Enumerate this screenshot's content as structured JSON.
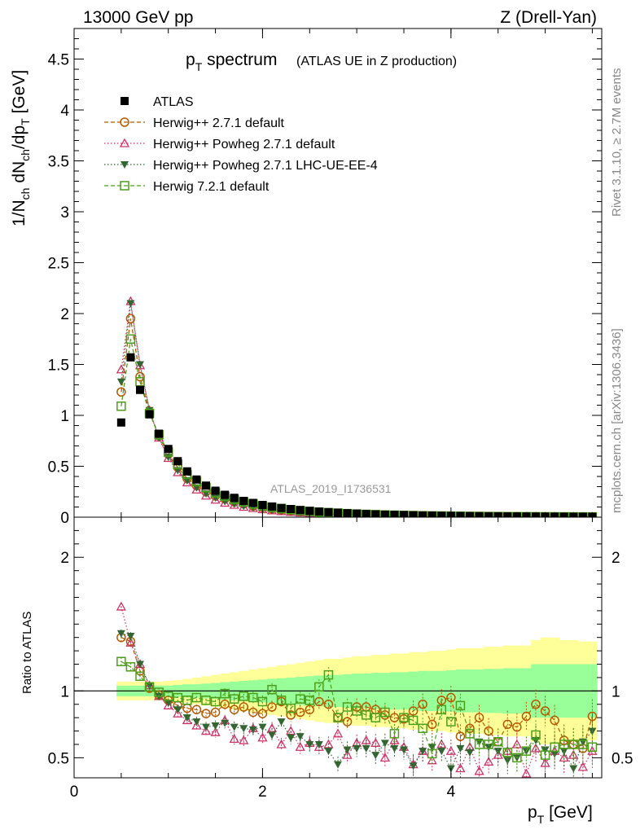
{
  "header": {
    "left": "13000 GeV pp",
    "right": "Z (Drell-Yan)"
  },
  "side_labels": {
    "rivet": "Rivet 3.1.10, ≥ 2.7M events",
    "mcplots": "mcplots.cern.ch [arXiv:1306.3436]"
  },
  "chart_data": [
    {
      "type": "scatter",
      "title_main": "p",
      "title_sub": "T",
      "title_rest": " spectrum",
      "title_paren": "(ATLAS UE in Z production)",
      "watermark": "ATLAS_2019_I1736531",
      "ylabel": "1/N_ch dN_ch/dp_T [GeV]",
      "xlim": [
        0,
        5.6
      ],
      "ylim": [
        0,
        4.8
      ],
      "yticks": [
        "0",
        "0.5",
        "1",
        "1.5",
        "2",
        "2.5",
        "3",
        "3.5",
        "4",
        "4.5"
      ],
      "x": [
        0.5,
        0.6,
        0.7,
        0.8,
        0.9,
        1.0,
        1.1,
        1.2,
        1.3,
        1.4,
        1.5,
        1.6,
        1.7,
        1.8,
        1.9,
        2.0,
        2.1,
        2.2,
        2.3,
        2.4,
        2.5,
        2.6,
        2.7,
        2.8,
        2.9,
        3.0,
        3.1,
        3.2,
        3.3,
        3.4,
        3.5,
        3.6,
        3.7,
        3.8,
        3.9,
        4.0,
        4.1,
        4.2,
        4.3,
        4.4,
        4.5,
        4.6,
        4.7,
        4.8,
        4.9,
        5.0,
        5.1,
        5.2,
        5.3,
        5.4,
        5.5
      ],
      "series": [
        {
          "name": "ATLAS",
          "color": "#000000",
          "marker": "square-filled",
          "values": [
            0.93,
            1.57,
            1.25,
            1.01,
            0.82,
            0.67,
            0.55,
            0.45,
            0.37,
            0.31,
            0.26,
            0.22,
            0.19,
            0.16,
            0.14,
            0.12,
            0.105,
            0.09,
            0.08,
            0.07,
            0.062,
            0.055,
            0.049,
            0.044,
            0.039,
            0.035,
            0.031,
            0.028,
            0.025,
            0.023,
            0.021,
            0.019,
            0.017,
            0.016,
            0.014,
            0.013,
            0.012,
            0.011,
            0.01,
            0.009,
            0.0085,
            0.008,
            0.0075,
            0.007,
            0.0065,
            0.006,
            0.0055,
            0.005,
            0.0047,
            0.0044,
            0.0041
          ]
        },
        {
          "name": "Herwig++ 2.7.1 default",
          "color": "#b35900",
          "marker": "circle-open",
          "line": "dashed",
          "values": [
            1.23,
            1.95,
            1.38,
            1.03,
            0.8,
            0.62,
            0.49,
            0.38,
            0.31,
            0.25,
            0.21,
            0.18,
            0.15,
            0.13,
            0.11,
            0.095,
            0.082,
            0.072,
            0.063,
            0.056,
            0.05,
            0.044,
            0.039,
            0.034,
            0.03,
            0.027,
            0.024,
            0.021,
            0.019,
            0.017,
            0.015,
            0.014,
            0.012,
            0.011,
            0.01,
            0.009,
            0.008,
            0.0075,
            0.007,
            0.0065,
            0.006,
            0.0055,
            0.005,
            0.0046,
            0.0042,
            0.0038,
            0.0035,
            0.0032,
            0.003,
            0.0028,
            0.0026
          ]
        },
        {
          "name": "Herwig++ Powheg 2.7.1 default",
          "color": "#cc3366",
          "marker": "triangle-up-open",
          "line": "dotted",
          "values": [
            1.45,
            2.12,
            1.49,
            1.05,
            0.78,
            0.58,
            0.44,
            0.34,
            0.27,
            0.21,
            0.17,
            0.14,
            0.12,
            0.1,
            0.088,
            0.076,
            0.065,
            0.057,
            0.05,
            0.044,
            0.039,
            0.034,
            0.03,
            0.027,
            0.024,
            0.021,
            0.019,
            0.017,
            0.015,
            0.014,
            0.012,
            0.011,
            0.01,
            0.009,
            0.008,
            0.0075,
            0.007,
            0.0065,
            0.006,
            0.0055,
            0.005,
            0.0046,
            0.0042,
            0.0038,
            0.0035,
            0.0032,
            0.003,
            0.0028,
            0.0026,
            0.0024,
            0.0022
          ]
        },
        {
          "name": "Herwig++ Powheg 2.7.1 LHC-UE-EE-4",
          "color": "#336633",
          "marker": "triangle-down-filled",
          "line": "dotted",
          "values": [
            1.33,
            2.1,
            1.5,
            1.05,
            0.78,
            0.59,
            0.46,
            0.36,
            0.29,
            0.23,
            0.19,
            0.155,
            0.13,
            0.11,
            0.095,
            0.082,
            0.07,
            0.06,
            0.052,
            0.046,
            0.04,
            0.035,
            0.031,
            0.027,
            0.024,
            0.021,
            0.019,
            0.017,
            0.015,
            0.013,
            0.012,
            0.011,
            0.0095,
            0.0085,
            0.0078,
            0.007,
            0.0063,
            0.0057,
            0.0052,
            0.0047,
            0.0043,
            0.004,
            0.0037,
            0.0034,
            0.0031,
            0.0029,
            0.0027,
            0.0025,
            0.0023,
            0.0021,
            0.002
          ]
        },
        {
          "name": "Herwig 7.2.1 default",
          "color": "#4d9e1a",
          "marker": "square-open",
          "line": "dashed",
          "values": [
            1.09,
            1.75,
            1.33,
            1.02,
            0.81,
            0.64,
            0.52,
            0.42,
            0.35,
            0.29,
            0.24,
            0.205,
            0.175,
            0.15,
            0.13,
            0.11,
            0.097,
            0.085,
            0.074,
            0.065,
            0.057,
            0.05,
            0.045,
            0.04,
            0.035,
            0.031,
            0.028,
            0.025,
            0.022,
            0.02,
            0.018,
            0.016,
            0.014,
            0.013,
            0.012,
            0.011,
            0.0095,
            0.0085,
            0.0078,
            0.007,
            0.0064,
            0.0058,
            0.0053,
            0.0049,
            0.0045,
            0.0041,
            0.0038,
            0.0035,
            0.0032,
            0.003,
            0.0028
          ]
        }
      ]
    },
    {
      "type": "scatter",
      "ylabel": "Ratio to ATLAS",
      "xlabel_main": "p",
      "xlabel_sub": "T",
      "xlabel_rest": " [GeV]",
      "xlim": [
        0,
        5.6
      ],
      "ylim": [
        0.35,
        2.3
      ],
      "yticks": [
        "0.5",
        "1",
        "2"
      ],
      "xticks": [
        "0",
        "2",
        "4"
      ],
      "band_inner_half_width": [
        0.04,
        0.04,
        0.04,
        0.04,
        0.04,
        0.04,
        0.045,
        0.05,
        0.05,
        0.055,
        0.06,
        0.065,
        0.07,
        0.075,
        0.08,
        0.085,
        0.09,
        0.095,
        0.1,
        0.105,
        0.11,
        0.115,
        0.12,
        0.12,
        0.125,
        0.13,
        0.13,
        0.135,
        0.135,
        0.14,
        0.14,
        0.145,
        0.15,
        0.15,
        0.15,
        0.155,
        0.16,
        0.16,
        0.16,
        0.165,
        0.165,
        0.17,
        0.17,
        0.17,
        0.2,
        0.2,
        0.2,
        0.2,
        0.2,
        0.2,
        0.2
      ],
      "band_outer_half_width": [
        0.07,
        0.07,
        0.07,
        0.07,
        0.07,
        0.075,
        0.08,
        0.09,
        0.1,
        0.11,
        0.12,
        0.13,
        0.14,
        0.15,
        0.16,
        0.17,
        0.18,
        0.19,
        0.2,
        0.21,
        0.22,
        0.23,
        0.24,
        0.24,
        0.25,
        0.26,
        0.26,
        0.27,
        0.27,
        0.28,
        0.28,
        0.29,
        0.29,
        0.3,
        0.3,
        0.31,
        0.32,
        0.32,
        0.32,
        0.33,
        0.33,
        0.34,
        0.34,
        0.34,
        0.38,
        0.4,
        0.4,
        0.38,
        0.38,
        0.37,
        0.37
      ],
      "band_inner_color": "#99ff99",
      "band_outer_color": "#ffff99",
      "series": [
        {
          "name": "Herwig++ 2.7.1 default",
          "values": [
            1.4,
            1.37,
            1.15,
            1.02,
            0.97,
            0.93,
            0.89,
            0.87,
            0.86,
            0.83,
            0.84,
            0.9,
            0.86,
            0.88,
            0.84,
            0.83,
            0.88,
            0.92,
            0.82,
            0.84,
            0.86,
            0.92,
            0.9,
            0.8,
            0.77,
            0.88,
            0.88,
            0.86,
            0.82,
            0.8,
            0.79,
            0.85,
            0.9,
            0.75,
            0.93,
            0.95,
            0.66,
            0.72,
            0.8,
            0.7,
            0.62,
            0.75,
            0.73,
            0.81,
            0.9,
            0.85,
            0.78,
            0.63,
            0.6,
            0.57,
            0.81
          ]
        },
        {
          "name": "Herwig++ Powheg 2.7.1 default",
          "values": [
            1.63,
            1.36,
            1.2,
            1.04,
            0.96,
            0.89,
            0.83,
            0.78,
            0.74,
            0.7,
            0.69,
            0.78,
            0.64,
            0.63,
            0.72,
            0.65,
            0.72,
            0.6,
            0.7,
            0.58,
            0.61,
            0.58,
            0.6,
            0.68,
            0.52,
            0.61,
            0.63,
            0.61,
            0.5,
            0.63,
            0.58,
            0.45,
            0.55,
            0.48,
            0.6,
            0.55,
            0.42,
            0.58,
            0.4,
            0.47,
            0.52,
            0.55,
            0.6,
            0.38,
            0.57,
            0.46,
            0.55,
            0.5,
            0.52,
            0.43,
            0.55
          ]
        },
        {
          "name": "Herwig++ Powheg 2.7.1 LHC-UE-EE-4",
          "values": [
            1.43,
            1.41,
            1.2,
            1.04,
            0.96,
            0.91,
            0.86,
            0.8,
            0.77,
            0.73,
            0.74,
            0.76,
            0.73,
            0.72,
            0.71,
            0.73,
            0.67,
            0.77,
            0.65,
            0.66,
            0.6,
            0.6,
            0.55,
            0.45,
            0.56,
            0.57,
            0.57,
            0.52,
            0.61,
            0.57,
            0.56,
            0.44,
            0.55,
            0.58,
            0.55,
            0.42,
            0.57,
            0.54,
            0.62,
            0.58,
            0.55,
            0.48,
            0.5,
            0.55,
            0.63,
            0.56,
            0.53,
            0.55,
            0.42,
            0.62,
            0.7
          ]
        },
        {
          "name": "Herwig 7.2.1 default",
          "values": [
            1.22,
            1.18,
            1.11,
            1.03,
            0.99,
            0.96,
            0.95,
            0.93,
            0.95,
            0.93,
            0.92,
            0.98,
            0.94,
            0.96,
            0.95,
            0.92,
            1.01,
            0.93,
            0.87,
            0.94,
            0.93,
            1.03,
            1.12,
            0.8,
            0.88,
            0.85,
            0.82,
            0.8,
            0.84,
            0.68,
            0.8,
            0.78,
            0.72,
            0.53,
            0.86,
            0.77,
            0.89,
            0.68,
            0.6,
            0.6,
            0.62,
            0.54,
            0.5,
            0.55,
            0.67,
            0.52,
            0.58,
            0.6,
            0.6,
            0.6,
            0.58
          ]
        }
      ]
    }
  ]
}
